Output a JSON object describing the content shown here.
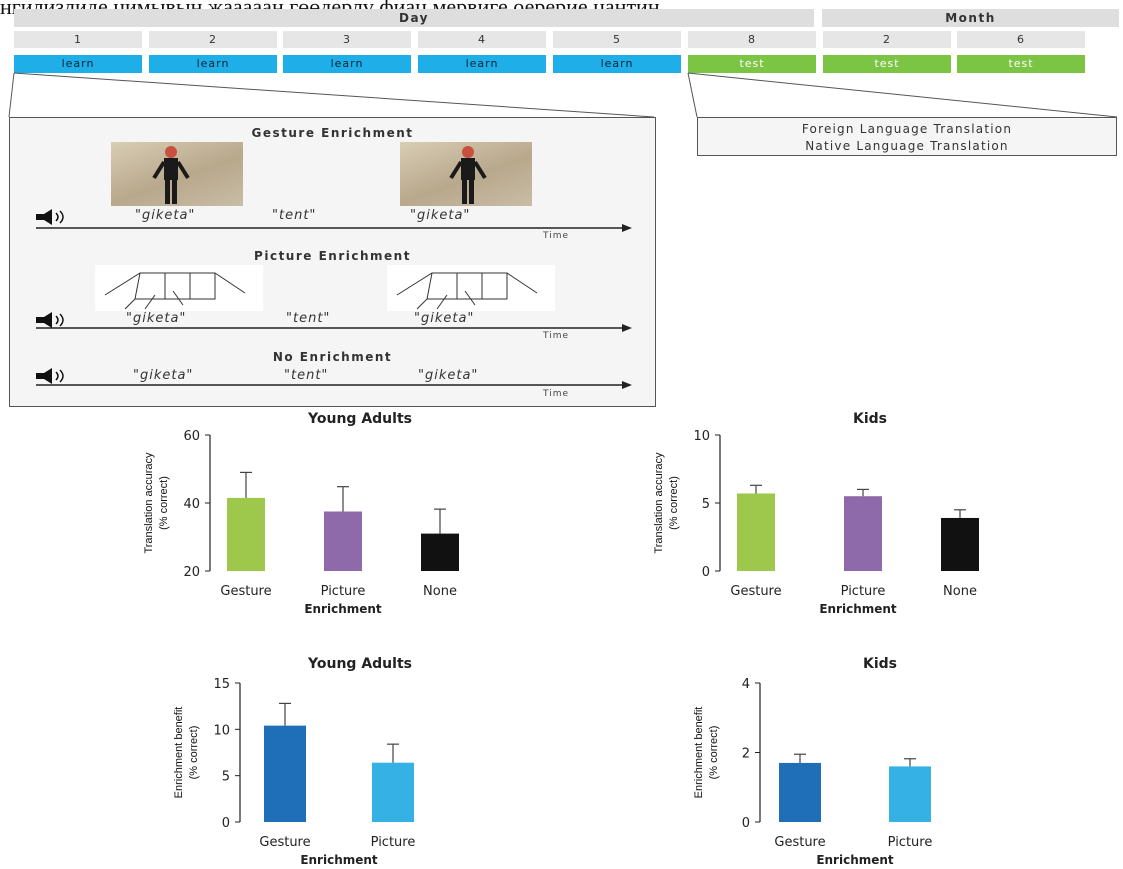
{
  "top_text": "нгилизлиде цимывын жааааан гөөдерлү фиац мервиге оерерие цантин",
  "timeline": {
    "day_header": "Day",
    "month_header": "Month",
    "columns": [
      {
        "num": "1",
        "label": "learn",
        "kind": "learn"
      },
      {
        "num": "2",
        "label": "learn",
        "kind": "learn"
      },
      {
        "num": "3",
        "label": "learn",
        "kind": "learn"
      },
      {
        "num": "4",
        "label": "learn",
        "kind": "learn"
      },
      {
        "num": "5",
        "label": "learn",
        "kind": "learn"
      },
      {
        "num": "8",
        "label": "test",
        "kind": "test"
      },
      {
        "num": "2",
        "label": "test",
        "kind": "test"
      },
      {
        "num": "6",
        "label": "test",
        "kind": "test"
      }
    ],
    "colors": {
      "learn": "#1eaee8",
      "test": "#7cc544"
    }
  },
  "procedure": {
    "gesture_title": "Gesture Enrichment",
    "picture_title": "Picture Enrichment",
    "none_title": "No Enrichment",
    "word1": "\"giketa\"",
    "word2": "\"tent\"",
    "word3": "\"giketa\"",
    "time_label": "Time",
    "icons": [
      "speaker-icon",
      "person-photo",
      "tent-drawing"
    ]
  },
  "test_box": {
    "line1": "Foreign Language Translation",
    "line2": "Native Language Translation"
  },
  "chart_data": [
    {
      "type": "bar",
      "title": "Young Adults",
      "ylabel": "Translation accuracy (% correct)",
      "xlabel": "Enrichment",
      "categories": [
        "Gesture",
        "Picture",
        "None"
      ],
      "values": [
        41.5,
        37.5,
        31
      ],
      "errors": [
        7.5,
        7.3,
        7.2
      ],
      "ylim": [
        20,
        60
      ],
      "yticks": [
        20,
        40,
        60
      ],
      "colors": [
        "#9dc84b",
        "#8f6aab",
        "#111111"
      ]
    },
    {
      "type": "bar",
      "title": "Kids",
      "ylabel": "Translation accuracy (% correct)",
      "xlabel": "Enrichment",
      "categories": [
        "Gesture",
        "Picture",
        "None"
      ],
      "values": [
        5.7,
        5.5,
        3.9
      ],
      "errors": [
        0.6,
        0.5,
        0.6
      ],
      "ylim": [
        0,
        10
      ],
      "yticks": [
        0,
        5,
        10
      ],
      "colors": [
        "#9dc84b",
        "#8f6aab",
        "#111111"
      ]
    },
    {
      "type": "bar",
      "title": "Young Adults",
      "ylabel": "Enrichment benefit (% correct)",
      "xlabel": "Enrichment",
      "categories": [
        "Gesture",
        "Picture"
      ],
      "values": [
        10.4,
        6.4
      ],
      "errors": [
        2.4,
        2.0
      ],
      "ylim": [
        0,
        15
      ],
      "yticks": [
        0,
        5,
        10,
        15
      ],
      "colors": [
        "#1f6fb8",
        "#35b1e6"
      ]
    },
    {
      "type": "bar",
      "title": "Kids",
      "ylabel": "Enrichment benefit (% correct)",
      "xlabel": "Enrichment",
      "categories": [
        "Gesture",
        "Picture"
      ],
      "values": [
        1.7,
        1.6
      ],
      "errors": [
        0.25,
        0.22
      ],
      "ylim": [
        0,
        4
      ],
      "yticks": [
        0,
        2,
        4
      ],
      "colors": [
        "#1f6fb8",
        "#35b1e6"
      ]
    }
  ]
}
